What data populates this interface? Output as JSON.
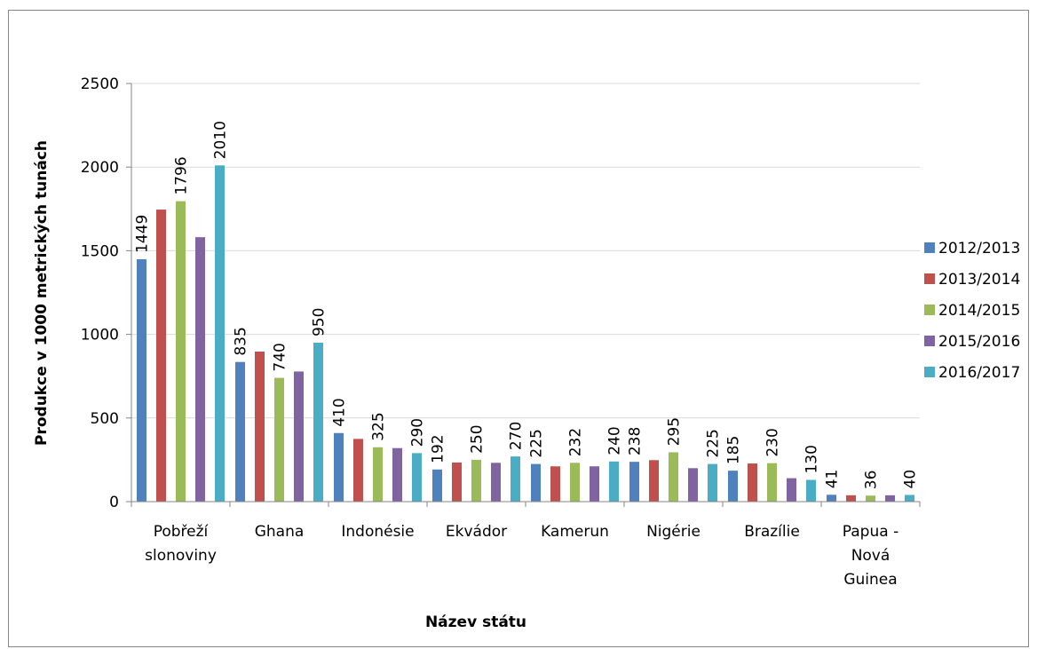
{
  "chart_data": {
    "type": "bar",
    "title": "",
    "xlabel": "Název státu",
    "ylabel": "Produkce v 1000 metrických tunách",
    "ylim": [
      0,
      2500
    ],
    "yticks": [
      0,
      500,
      1000,
      1500,
      2000,
      2500
    ],
    "grid": true,
    "legend_position": "right",
    "categories": [
      [
        "Pobřeží",
        "slonoviny"
      ],
      [
        "Ghana"
      ],
      [
        "Indonésie"
      ],
      [
        "Ekvádor"
      ],
      [
        "Kamerun"
      ],
      [
        "Nigérie"
      ],
      [
        "Brazílie"
      ],
      [
        "Papua -",
        "Nová",
        "Guinea"
      ]
    ],
    "series": [
      {
        "name": "2012/2013",
        "color": "#4f81bd",
        "values": [
          1449,
          835,
          410,
          192,
          225,
          238,
          185,
          41
        ],
        "labels": [
          "1449",
          "835",
          "410",
          "192",
          "225",
          "238",
          "185",
          "41"
        ]
      },
      {
        "name": "2013/2014",
        "color": "#c0504d",
        "values": [
          1746,
          897,
          375,
          234,
          211,
          248,
          228,
          38
        ],
        "labels": [
          "",
          "",
          "",
          "",
          "",
          "",
          "",
          ""
        ]
      },
      {
        "name": "2014/2015",
        "color": "#9bbb59",
        "values": [
          1796,
          740,
          325,
          250,
          232,
          295,
          230,
          36
        ],
        "labels": [
          "1796",
          "740",
          "325",
          "250",
          "232",
          "295",
          "230",
          "36"
        ]
      },
      {
        "name": "2015/2016",
        "color": "#8064a2",
        "values": [
          1581,
          778,
          320,
          232,
          211,
          200,
          140,
          38
        ],
        "labels": [
          "",
          "",
          "",
          "",
          "",
          "",
          "",
          ""
        ]
      },
      {
        "name": "2016/2017",
        "color": "#4bacc6",
        "values": [
          2010,
          950,
          290,
          270,
          240,
          225,
          130,
          40
        ],
        "labels": [
          "2010",
          "950",
          "290",
          "270",
          "240",
          "225",
          "130",
          "40"
        ]
      }
    ]
  }
}
